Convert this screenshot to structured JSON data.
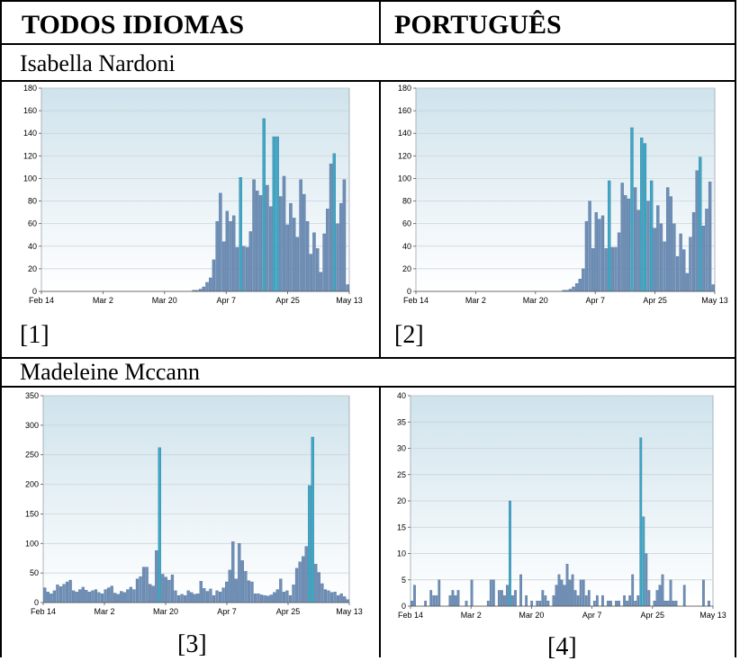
{
  "headers": {
    "left": "TODOS IDIOMAS",
    "right": "PORTUGUÊS"
  },
  "sections": [
    "Isabella Nardoni",
    "Madeleine Mccann"
  ],
  "labels": [
    "[1]",
    "[2]",
    "[3]",
    "[4]"
  ],
  "colors": {
    "bar_fill": "#6f8fb6",
    "bar_stroke": "#3a5f8c",
    "peak_fill": "#39a9c5",
    "plot_top": "#cfe3ec",
    "plot_bottom": "#ffffff",
    "grid": "#c8d0d8"
  },
  "chart_data": [
    {
      "type": "bar",
      "x_tick_labels": [
        "Feb 14",
        "Mar 2",
        "Mar 20",
        "Apr 7",
        "Apr 25",
        "May 13"
      ],
      "yticks": [
        0,
        20,
        40,
        60,
        80,
        100,
        120,
        140,
        160,
        180
      ],
      "ylim": [
        0,
        180
      ],
      "grid": true,
      "values": [
        0,
        0,
        0,
        0,
        0,
        0,
        0,
        0,
        0,
        0,
        0,
        0,
        0,
        0,
        0,
        0,
        0,
        0,
        0,
        0,
        0,
        0,
        0,
        0,
        0,
        0,
        0,
        0,
        0,
        0,
        0,
        0,
        0,
        0,
        0,
        0,
        0,
        0,
        0,
        0,
        0,
        0,
        0,
        0,
        0,
        1,
        1,
        2,
        4,
        8,
        12,
        28,
        62,
        87,
        44,
        71,
        62,
        67,
        39,
        101,
        40,
        39,
        53,
        99,
        89,
        85,
        153,
        94,
        75,
        137,
        137,
        84,
        102,
        59,
        78,
        65,
        48,
        99,
        86,
        62,
        33,
        52,
        38,
        17,
        51,
        73,
        113,
        122,
        60,
        78,
        99,
        6
      ],
      "peak_values": [
        101,
        153,
        137,
        137,
        122
      ]
    },
    {
      "type": "bar",
      "x_tick_labels": [
        "Feb 14",
        "Mar 2",
        "Mar 20",
        "Apr 7",
        "Apr 25",
        "May 13"
      ],
      "yticks": [
        0,
        20,
        40,
        60,
        80,
        100,
        120,
        140,
        160,
        180
      ],
      "ylim": [
        0,
        180
      ],
      "grid": true,
      "values": [
        0,
        0,
        0,
        0,
        0,
        0,
        0,
        0,
        0,
        0,
        0,
        0,
        0,
        0,
        0,
        0,
        0,
        0,
        0,
        0,
        0,
        0,
        0,
        0,
        0,
        0,
        0,
        0,
        0,
        0,
        0,
        0,
        0,
        0,
        0,
        0,
        0,
        0,
        0,
        0,
        0,
        0,
        0,
        0,
        0,
        1,
        1,
        2,
        4,
        7,
        11,
        20,
        62,
        80,
        38,
        70,
        64,
        67,
        38,
        98,
        39,
        39,
        52,
        96,
        85,
        82,
        145,
        92,
        72,
        136,
        131,
        80,
        98,
        56,
        76,
        60,
        44,
        92,
        84,
        60,
        31,
        51,
        37,
        16,
        48,
        70,
        107,
        119,
        58,
        73,
        97,
        6
      ],
      "peak_values": [
        98,
        145,
        136,
        131,
        119
      ]
    },
    {
      "type": "bar",
      "x_tick_labels": [
        "Feb 14",
        "Mar 2",
        "Mar 20",
        "Apr 7",
        "Apr 25",
        "May 13"
      ],
      "yticks": [
        0,
        50,
        100,
        150,
        200,
        250,
        300,
        350
      ],
      "ylim": [
        0,
        350
      ],
      "grid": true,
      "values": [
        25,
        18,
        15,
        20,
        30,
        27,
        31,
        35,
        38,
        20,
        18,
        22,
        26,
        21,
        18,
        20,
        22,
        17,
        15,
        22,
        25,
        28,
        16,
        14,
        19,
        17,
        22,
        26,
        22,
        40,
        44,
        60,
        60,
        31,
        28,
        88,
        262,
        48,
        43,
        38,
        47,
        20,
        12,
        14,
        12,
        20,
        17,
        14,
        15,
        36,
        24,
        19,
        23,
        12,
        20,
        18,
        25,
        35,
        55,
        103,
        40,
        100,
        71,
        53,
        37,
        35,
        15,
        15,
        13,
        12,
        11,
        13,
        17,
        22,
        40,
        18,
        20,
        12,
        30,
        58,
        69,
        78,
        95,
        198,
        280,
        65,
        51,
        32,
        22,
        20,
        17,
        18,
        12,
        15,
        10,
        5
      ],
      "peak_values": [
        262,
        280,
        198
      ]
    },
    {
      "type": "bar",
      "x_tick_labels": [
        "Feb 14",
        "Mar 2",
        "Mar 20",
        "Apr 7",
        "Apr 25",
        "May 13"
      ],
      "yticks": [
        0,
        5,
        10,
        15,
        20,
        25,
        30,
        35,
        40
      ],
      "ylim": [
        0,
        40
      ],
      "grid": true,
      "values": [
        1,
        4,
        0,
        0,
        0,
        1,
        0,
        3,
        2,
        2,
        5,
        0,
        0,
        0,
        2,
        3,
        2,
        3,
        0,
        0,
        1,
        0,
        5,
        0,
        0,
        0,
        0,
        0,
        1,
        5,
        5,
        0,
        3,
        3,
        2,
        4,
        20,
        2,
        3,
        0,
        6,
        0,
        2,
        0,
        1,
        0,
        1,
        1,
        3,
        2,
        1,
        0,
        2,
        4,
        6,
        5,
        4,
        8,
        5,
        6,
        3,
        2,
        5,
        5,
        2,
        3,
        0,
        1,
        2,
        0,
        2,
        0,
        1,
        1,
        0,
        1,
        1,
        0,
        2,
        1,
        2,
        6,
        1,
        2,
        32,
        17,
        10,
        3,
        0,
        1,
        3,
        4,
        6,
        1,
        1,
        5,
        1,
        1,
        0,
        0,
        4,
        0,
        0,
        0,
        0,
        0,
        0,
        5,
        0,
        1,
        0
      ],
      "peak_values": [
        20,
        32,
        17
      ]
    }
  ]
}
